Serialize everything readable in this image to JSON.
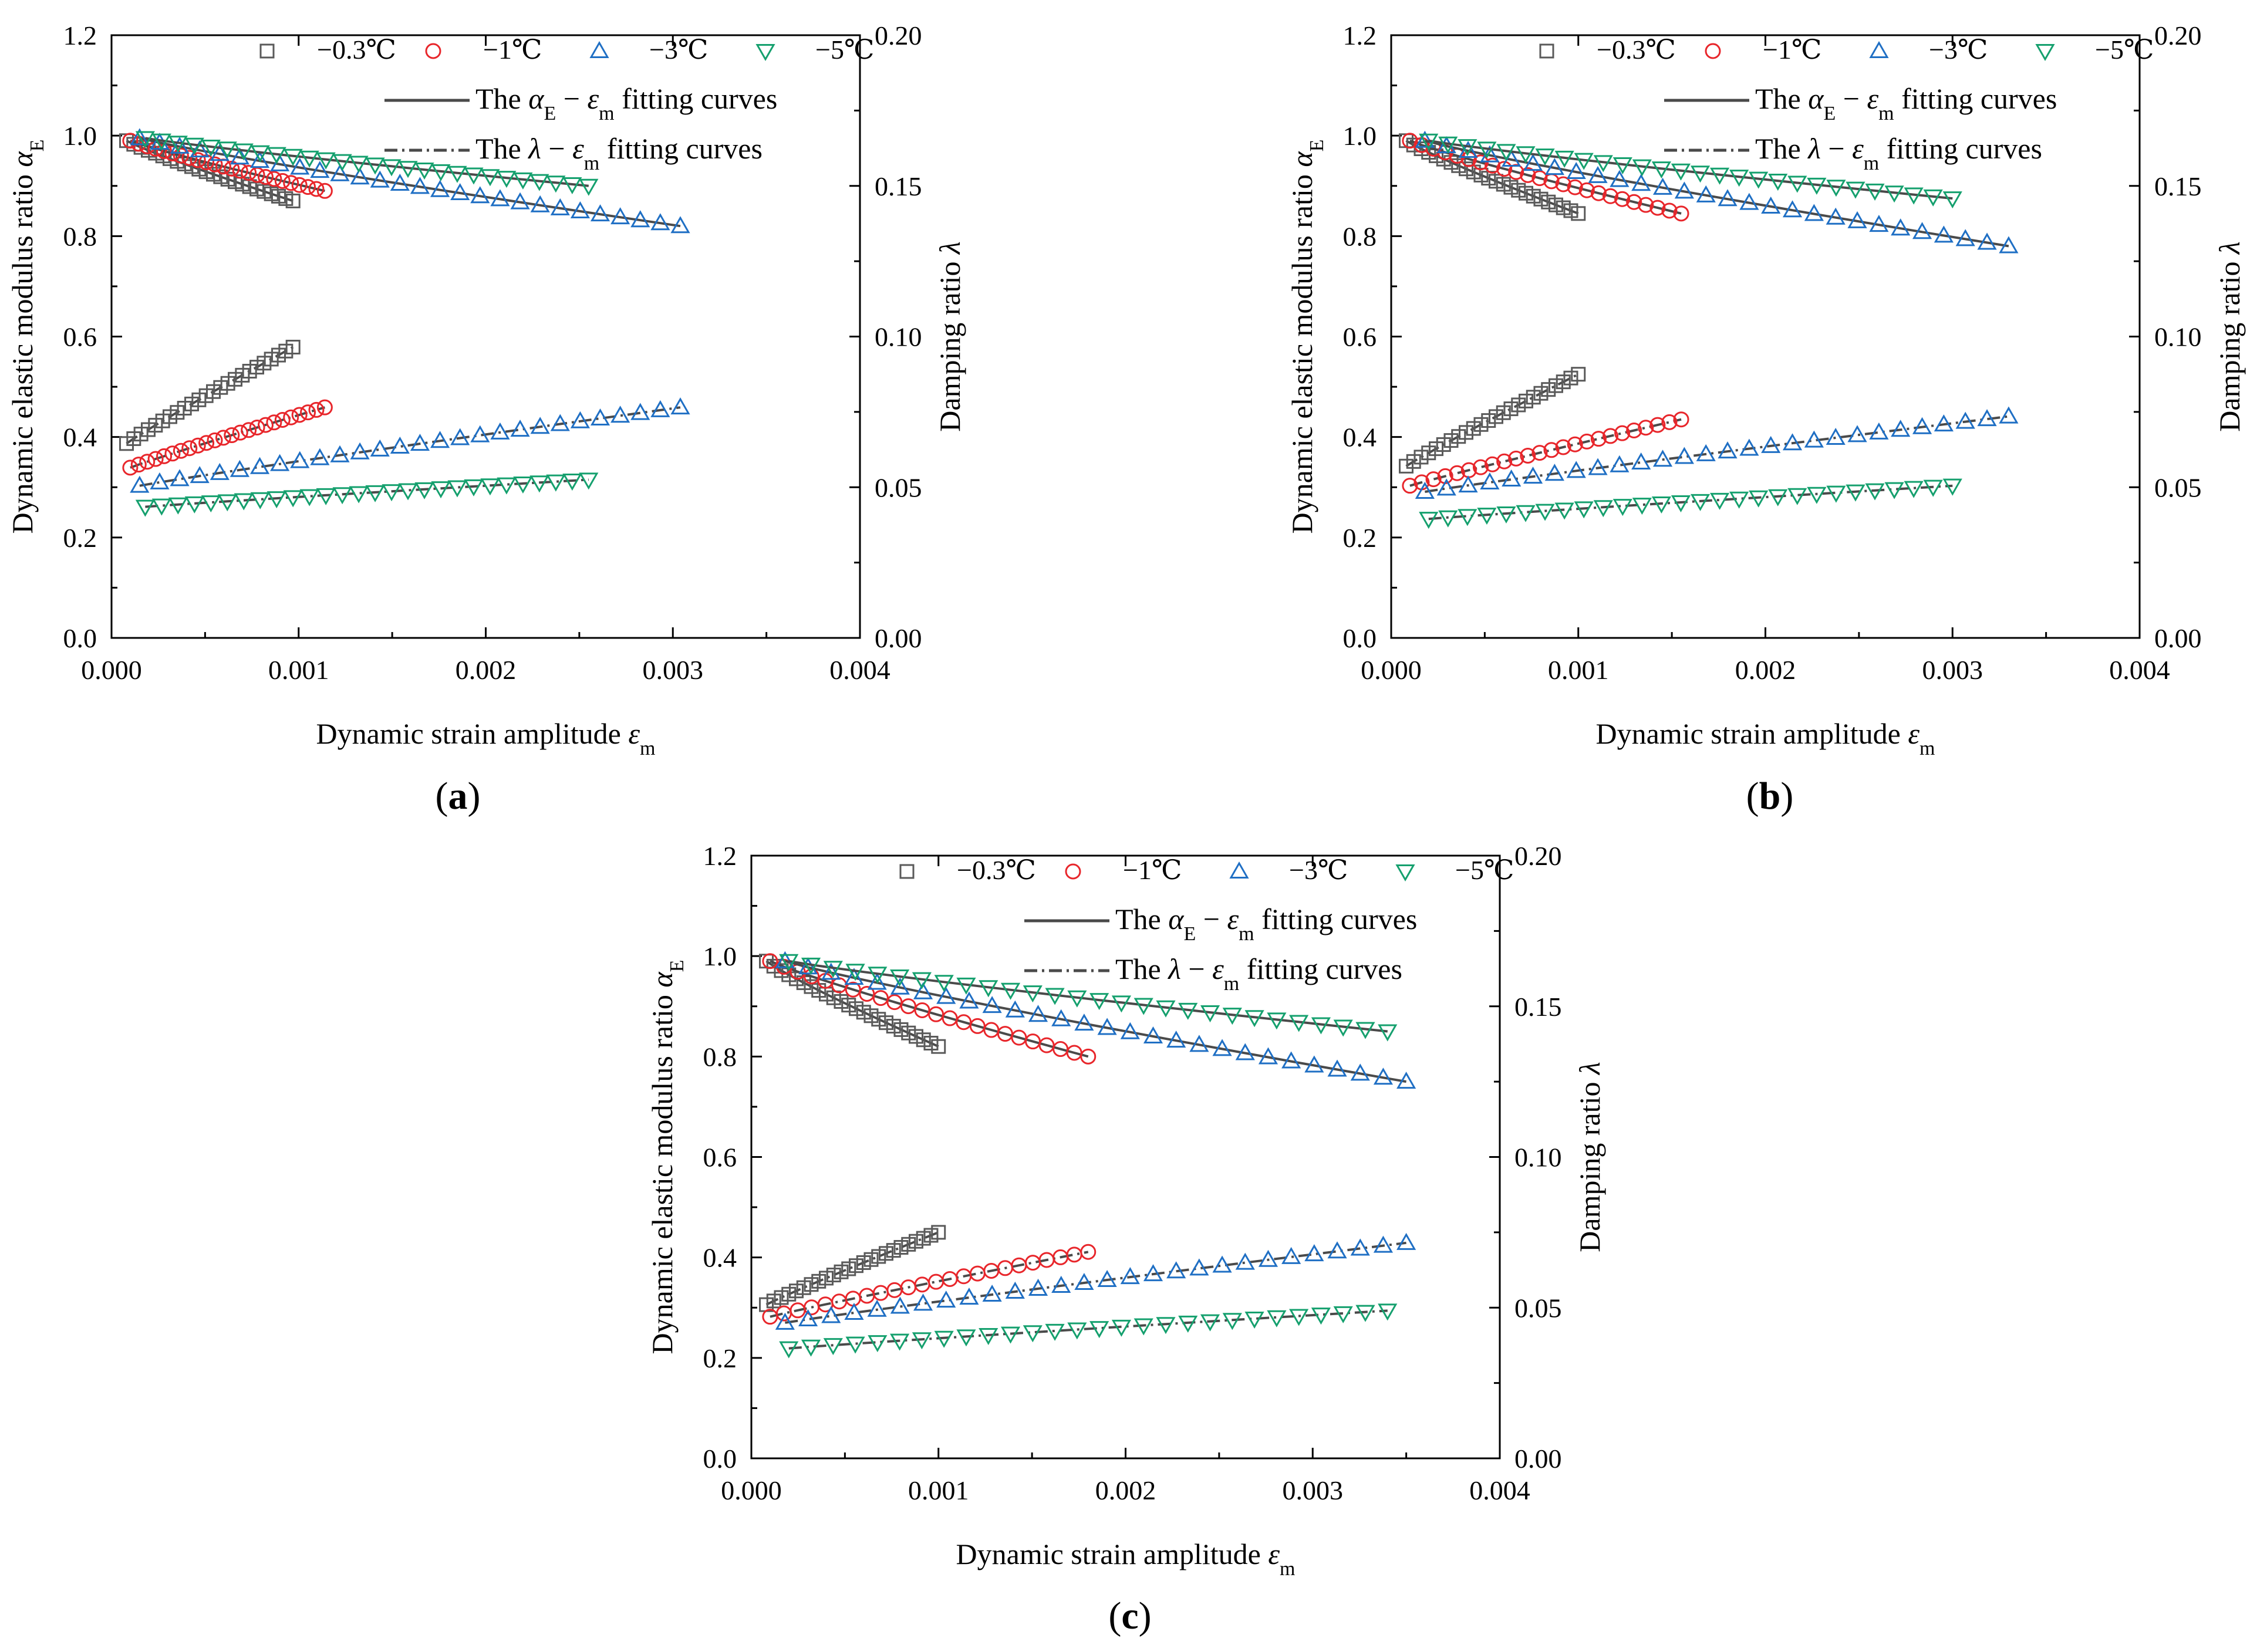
{
  "figure": {
    "common": {
      "xlabel": "Dynamic strain amplitude",
      "xlabel_symbol": "ε",
      "xlabel_sub": "m",
      "ylabel_left": "Dynamic elastic modulus ratio",
      "ylabel_left_symbol": "α",
      "ylabel_left_sub": "E",
      "ylabel_right": "Damping ratio",
      "ylabel_right_symbol": "λ",
      "legend_fit_E": [
        "The ",
        "α",
        "E",
        " − ",
        "ε",
        "m",
        "  fitting curves"
      ],
      "legend_fit_L": [
        "The ",
        "λ",
        " − ",
        "ε",
        "m",
        " fitting curves"
      ],
      "xticks": [
        "0.000",
        "0.001",
        "0.002",
        "0.003",
        "0.004"
      ],
      "yticks_left": [
        "0.0",
        "0.2",
        "0.4",
        "0.6",
        "0.8",
        "1.0",
        "1.2"
      ],
      "yticks_right": [
        "0.00",
        "0.05",
        "0.10",
        "0.15",
        "0.20"
      ]
    },
    "series_style": [
      {
        "name": "−0.3℃",
        "marker": "square",
        "color": "#5a5a5a"
      },
      {
        "name": "−1℃",
        "marker": "circle",
        "color": "#e8262b"
      },
      {
        "name": "−3℃",
        "marker": "triangle-up",
        "color": "#1f6fc4"
      },
      {
        "name": "−5℃",
        "marker": "triangle-down",
        "color": "#15a06e"
      }
    ],
    "fit_line_color": "#4a4a4a"
  },
  "chart_data": [
    {
      "panel": "(a)",
      "type": "scatter",
      "xlim": [
        0,
        0.004
      ],
      "ylim": [
        0,
        1.2
      ],
      "ylim_right": [
        0,
        0.2
      ],
      "xlabel": "Dynamic strain amplitude εm",
      "ylabel": "Dynamic elastic modulus ratio αE",
      "ylabel_right": "Damping ratio λ",
      "series": [
        {
          "name": "−0.3℃",
          "x_start": 8e-05,
          "x_end": 0.00097,
          "n": 24,
          "alphaE_start": 0.99,
          "alphaE_end": 0.87,
          "lambda_start": 0.0645,
          "lambda_end": 0.0965
        },
        {
          "name": "−1℃",
          "x_start": 0.0001,
          "x_end": 0.00114,
          "n": 24,
          "alphaE_start": 0.99,
          "alphaE_end": 0.89,
          "lambda_start": 0.0565,
          "lambda_end": 0.0765
        },
        {
          "name": "−3℃",
          "x_start": 0.00015,
          "x_end": 0.00304,
          "n": 28,
          "alphaE_start": 0.995,
          "alphaE_end": 0.82,
          "lambda_start": 0.0505,
          "lambda_end": 0.0765
        },
        {
          "name": "−5℃",
          "x_start": 0.00018,
          "x_end": 0.00255,
          "n": 28,
          "alphaE_start": 0.995,
          "alphaE_end": 0.9,
          "lambda_start": 0.0435,
          "lambda_end": 0.0525
        }
      ]
    },
    {
      "panel": "(b)",
      "type": "scatter",
      "xlim": [
        0,
        0.004
      ],
      "ylim": [
        0,
        1.2
      ],
      "ylim_right": [
        0,
        0.2
      ],
      "xlabel": "Dynamic strain amplitude εm",
      "ylabel": "Dynamic elastic modulus ratio αE",
      "ylabel_right": "Damping ratio λ",
      "series": [
        {
          "name": "−0.3℃",
          "x_start": 8e-05,
          "x_end": 0.001,
          "n": 24,
          "alphaE_start": 0.99,
          "alphaE_end": 0.845,
          "lambda_start": 0.057,
          "lambda_end": 0.0875
        },
        {
          "name": "−1℃",
          "x_start": 0.0001,
          "x_end": 0.00155,
          "n": 24,
          "alphaE_start": 0.99,
          "alphaE_end": 0.845,
          "lambda_start": 0.0505,
          "lambda_end": 0.0725
        },
        {
          "name": "−3℃",
          "x_start": 0.00018,
          "x_end": 0.0033,
          "n": 28,
          "alphaE_start": 0.99,
          "alphaE_end": 0.78,
          "lambda_start": 0.0485,
          "lambda_end": 0.0735
        },
        {
          "name": "−5℃",
          "x_start": 0.0002,
          "x_end": 0.003,
          "n": 28,
          "alphaE_start": 0.99,
          "alphaE_end": 0.875,
          "lambda_start": 0.0395,
          "lambda_end": 0.0505
        }
      ]
    },
    {
      "panel": "(c)",
      "type": "scatter",
      "xlim": [
        0,
        0.004
      ],
      "ylim": [
        0,
        1.2
      ],
      "ylim_right": [
        0,
        0.2
      ],
      "xlabel": "Dynamic strain amplitude εm",
      "ylabel": "Dynamic elastic modulus ratio αE",
      "ylabel_right": "Damping ratio λ",
      "series": [
        {
          "name": "−0.3℃",
          "x_start": 8e-05,
          "x_end": 0.001,
          "n": 24,
          "alphaE_start": 0.99,
          "alphaE_end": 0.82,
          "lambda_start": 0.051,
          "lambda_end": 0.075
        },
        {
          "name": "−1℃",
          "x_start": 0.0001,
          "x_end": 0.0018,
          "n": 24,
          "alphaE_start": 0.99,
          "alphaE_end": 0.8,
          "lambda_start": 0.047,
          "lambda_end": 0.0685
        },
        {
          "name": "−3℃",
          "x_start": 0.00018,
          "x_end": 0.0035,
          "n": 28,
          "alphaE_start": 0.99,
          "alphaE_end": 0.75,
          "lambda_start": 0.045,
          "lambda_end": 0.0715
        },
        {
          "name": "−5℃",
          "x_start": 0.0002,
          "x_end": 0.0034,
          "n": 28,
          "alphaE_start": 0.99,
          "alphaE_end": 0.85,
          "lambda_start": 0.0365,
          "lambda_end": 0.049
        }
      ]
    }
  ]
}
